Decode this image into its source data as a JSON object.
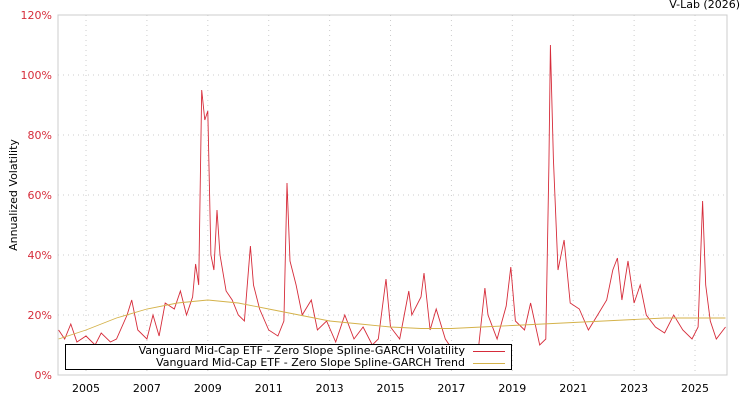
{
  "credit": "V-Lab (2026)",
  "chart_data": {
    "type": "line",
    "title": "",
    "xlabel": "",
    "ylabel": "Annualized Volatility",
    "xlim": [
      2004.08,
      2026.05
    ],
    "ylim": [
      0,
      120
    ],
    "grid": true,
    "legend_position": "bottom-left",
    "x_ticks": [
      "2005",
      "2007",
      "2009",
      "2011",
      "2013",
      "2015",
      "2017",
      "2019",
      "2021",
      "2023",
      "2025"
    ],
    "x_tick_values": [
      2005,
      2007,
      2009,
      2011,
      2013,
      2015,
      2017,
      2019,
      2021,
      2023,
      2025
    ],
    "y_ticks": [
      "0%",
      "20%",
      "40%",
      "60%",
      "80%",
      "100%",
      "120%"
    ],
    "y_tick_values": [
      0,
      20,
      40,
      60,
      80,
      100,
      120
    ],
    "series": [
      {
        "name": "Vanguard Mid-Cap ETF - Zero Slope Spline-GARCH Volatility",
        "color": "#d62c3a",
        "x": [
          2004.1,
          2004.3,
          2004.5,
          2004.7,
          2005.0,
          2005.3,
          2005.5,
          2005.8,
          2006.0,
          2006.35,
          2006.5,
          2006.7,
          2007.0,
          2007.2,
          2007.4,
          2007.6,
          2007.9,
          2008.1,
          2008.3,
          2008.5,
          2008.6,
          2008.7,
          2008.8,
          2008.9,
          2009.0,
          2009.1,
          2009.2,
          2009.3,
          2009.4,
          2009.6,
          2009.8,
          2010.0,
          2010.2,
          2010.4,
          2010.5,
          2010.7,
          2011.0,
          2011.3,
          2011.5,
          2011.6,
          2011.7,
          2011.9,
          2012.1,
          2012.4,
          2012.6,
          2012.9,
          2013.2,
          2013.5,
          2013.8,
          2014.1,
          2014.4,
          2014.6,
          2014.85,
          2015.0,
          2015.3,
          2015.6,
          2015.7,
          2016.0,
          2016.1,
          2016.3,
          2016.5,
          2016.8,
          2017.0,
          2017.3,
          2017.6,
          2017.9,
          2018.1,
          2018.2,
          2018.5,
          2018.8,
          2018.95,
          2019.1,
          2019.4,
          2019.6,
          2019.9,
          2020.1,
          2020.2,
          2020.25,
          2020.35,
          2020.5,
          2020.7,
          2020.9,
          2021.2,
          2021.5,
          2021.8,
          2022.1,
          2022.3,
          2022.45,
          2022.6,
          2022.8,
          2023.0,
          2023.2,
          2023.4,
          2023.7,
          2024.0,
          2024.3,
          2024.6,
          2024.9,
          2025.1,
          2025.25,
          2025.35,
          2025.5,
          2025.7,
          2026.0
        ],
        "values": [
          15,
          12,
          17,
          11,
          13,
          10,
          14,
          11,
          12,
          20,
          25,
          15,
          12,
          20,
          13,
          24,
          22,
          28,
          20,
          26,
          37,
          30,
          95,
          85,
          88,
          40,
          35,
          55,
          40,
          28,
          25,
          20,
          18,
          43,
          30,
          22,
          15,
          13,
          18,
          64,
          38,
          30,
          20,
          25,
          15,
          18,
          11,
          20,
          12,
          16,
          10,
          12,
          32,
          16,
          12,
          28,
          20,
          26,
          34,
          15,
          22,
          12,
          9,
          10,
          9,
          10,
          29,
          20,
          12,
          23,
          36,
          18,
          15,
          24,
          10,
          12,
          70,
          110,
          72,
          35,
          45,
          24,
          22,
          15,
          20,
          25,
          35,
          39,
          25,
          38,
          24,
          30,
          20,
          16,
          14,
          20,
          15,
          12,
          16,
          58,
          30,
          18,
          12,
          16
        ]
      },
      {
        "name": "Vanguard Mid-Cap ETF - Zero Slope Spline-GARCH Trend",
        "color": "#d4b24a",
        "x": [
          2004.1,
          2005,
          2006,
          2007,
          2008,
          2009,
          2010,
          2011,
          2012,
          2013,
          2014,
          2015,
          2016,
          2017,
          2018,
          2019,
          2020,
          2021,
          2022,
          2023,
          2024,
          2025,
          2026
        ],
        "values": [
          12,
          15,
          19,
          22,
          24,
          25,
          24,
          22,
          20,
          18,
          17,
          16,
          15.5,
          15.5,
          16,
          16.5,
          17,
          17.5,
          18,
          18.5,
          19,
          19,
          19
        ]
      }
    ]
  }
}
